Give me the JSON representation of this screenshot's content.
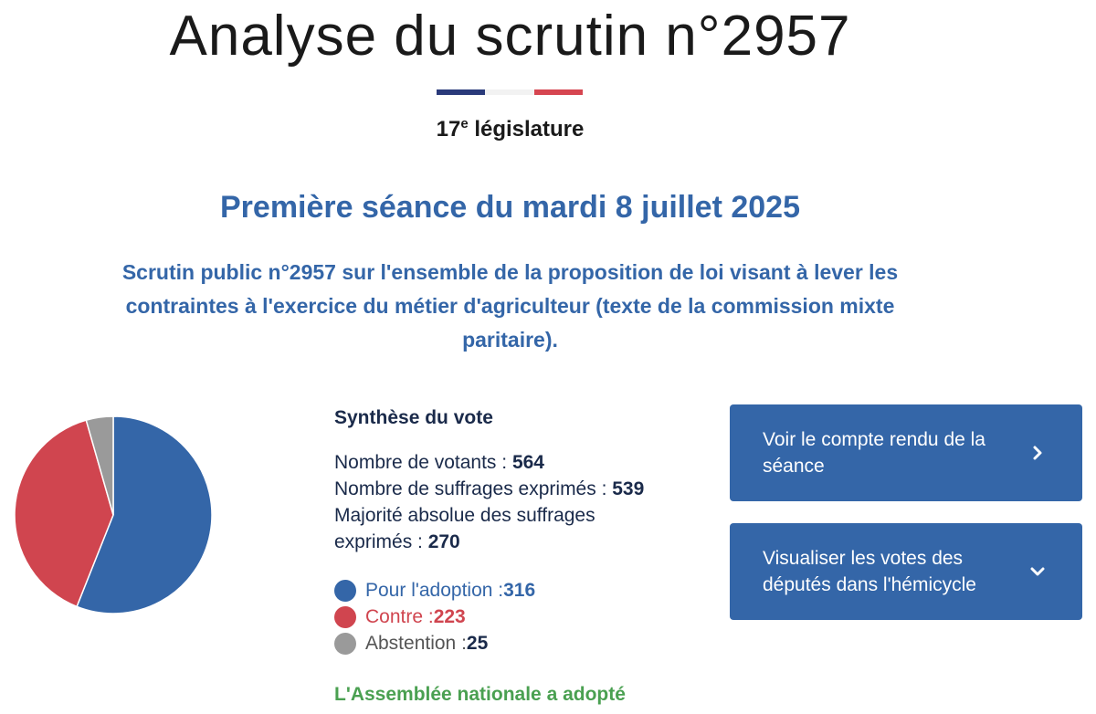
{
  "header": {
    "title": "Analyse du scrutin n°2957",
    "legislature_number": "17",
    "legislature_suffix": "e",
    "legislature_label": " législature"
  },
  "seance": {
    "title": "Première séance du mardi 8 juillet 2025",
    "description": "Scrutin public n°2957 sur l'ensemble de la proposition de loi visant à lever les contraintes à l'exercice du métier d'agriculteur (texte de la commission mixte paritaire)."
  },
  "synthese": {
    "title": "Synthèse du vote",
    "votants_label": "Nombre de votants : ",
    "votants_value": "564",
    "exprimes_label": "Nombre de suffrages exprimés : ",
    "exprimes_value": "539",
    "majorite_label": "Majorité absolue des suffrages exprimés : ",
    "majorite_value": "270",
    "verdict": "L'Assemblée nationale a adopté"
  },
  "legend": [
    {
      "label": "Pour l'adoption : ",
      "value": "316",
      "color": "#3466a8"
    },
    {
      "label": "Contre : ",
      "value": "223",
      "color": "#d0454f"
    },
    {
      "label": "Abstention : ",
      "value": "25",
      "color": "#9a9a9a"
    }
  ],
  "chart_data": {
    "type": "pie",
    "categories": [
      "Pour l'adoption",
      "Contre",
      "Abstention"
    ],
    "values": [
      316,
      223,
      25
    ],
    "colors": [
      "#3466a8",
      "#d0454f",
      "#9a9a9a"
    ]
  },
  "actions": {
    "compte_rendu_label": "Voir le compte rendu de la séance",
    "visualiser_label": "Visualiser les votes des députés dans l'hémicycle"
  },
  "icons": {
    "compte_rendu_icon": "chevron-right-icon",
    "visualiser_icon": "chevron-down-icon"
  },
  "theme": {
    "accent": "#3466a8",
    "flag_blue": "#2a3a7a",
    "flag_red": "#d64550",
    "success": "#4aa051"
  }
}
